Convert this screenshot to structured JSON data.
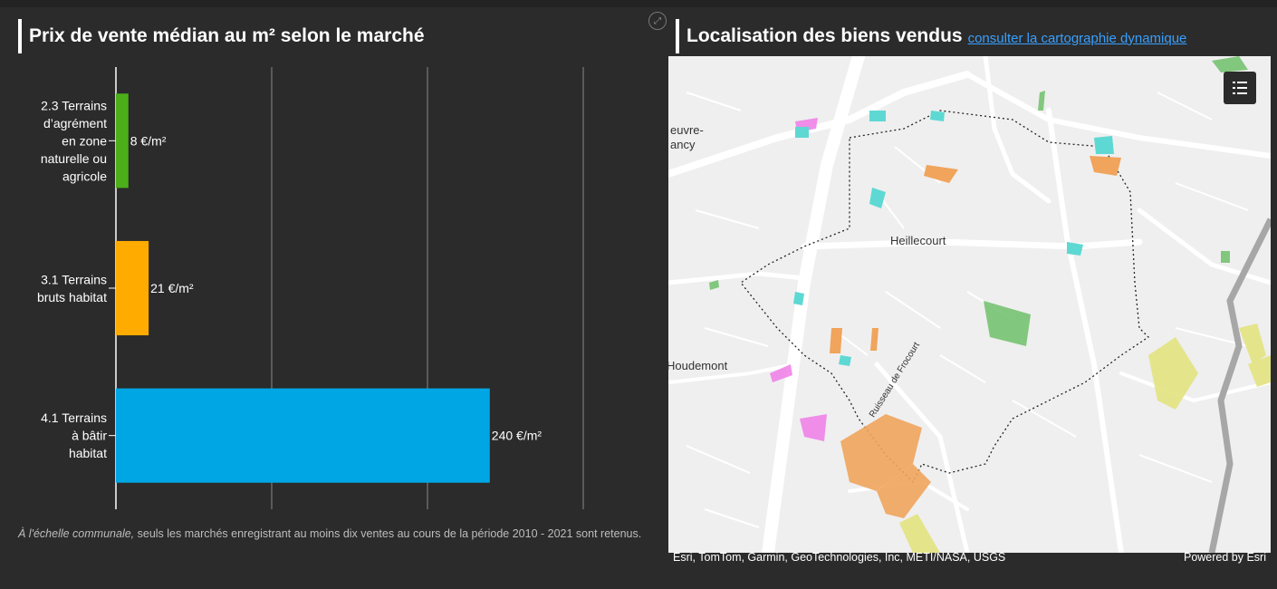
{
  "left_panel": {
    "title": "Prix de vente médian au m² selon le marché",
    "note_italic": "À l'échelle communale,",
    "note_rest": " seuls les marchés enregistrant au moins dix ventes au cours de la période 2010 - 2021 sont retenus."
  },
  "chart_data": {
    "type": "bar",
    "orientation": "horizontal",
    "categories": [
      "2.3 Terrains d’agrément en zone naturelle ou agricole",
      "3.1 Terrains bruts habitat",
      "4.1 Terrains à bâtir habitat"
    ],
    "category_lines": [
      [
        "2.3 Terrains",
        "d’agrément",
        "en zone",
        "naturelle ou",
        "agricole"
      ],
      [
        "3.1 Terrains",
        "bruts habitat"
      ],
      [
        "4.1 Terrains",
        "à bâtir",
        "habitat"
      ]
    ],
    "values": [
      8,
      21,
      240
    ],
    "value_labels": [
      "8 €/m²",
      "21 €/m²",
      "240 €/m²"
    ],
    "colors": [
      "#4caf1a",
      "#ffab00",
      "#00a6e4"
    ],
    "xlim": [
      0,
      300
    ],
    "gridlines": [
      100,
      200,
      300
    ],
    "grid": true
  },
  "right_panel": {
    "title": "Localisation des biens vendus",
    "link": "consulter la cartographie dynamique",
    "map_labels": [
      "Heillecourt",
      "Houdemont",
      "euvre-",
      "ancy",
      "Ruisseau de Frocourt"
    ],
    "attribution": "Esri, TomTom, Garmin, GeoTechnologies, Inc, METI/NASA, USGS",
    "powered": "Powered by Esri",
    "legend_icon": "legend-list-icon",
    "expand_icon": "expand-icon"
  }
}
